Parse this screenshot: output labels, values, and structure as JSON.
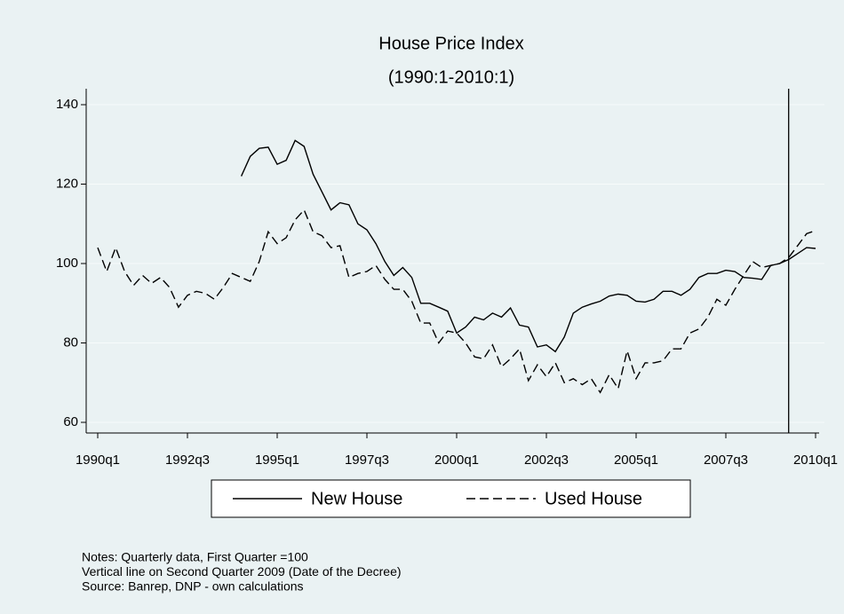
{
  "chart_data": {
    "type": "line",
    "title": "House Price Index",
    "subtitle": "(1990:1-2010:1)",
    "x": [
      1990,
      1990.25,
      1990.5,
      1990.75,
      1991,
      1991.25,
      1991.5,
      1991.75,
      1992,
      1992.25,
      1992.5,
      1992.75,
      1993,
      1993.25,
      1993.5,
      1993.75,
      1994,
      1994.25,
      1994.5,
      1994.75,
      1995,
      1995.25,
      1995.5,
      1995.75,
      1996,
      1996.25,
      1996.5,
      1996.75,
      1997,
      1997.25,
      1997.5,
      1997.75,
      1998,
      1998.25,
      1998.5,
      1998.75,
      1999,
      1999.25,
      1999.5,
      1999.75,
      2000,
      2000.25,
      2000.5,
      2000.75,
      2001,
      2001.25,
      2001.5,
      2001.75,
      2002,
      2002.25,
      2002.5,
      2002.75,
      2003,
      2003.25,
      2003.5,
      2003.75,
      2004,
      2004.25,
      2004.5,
      2004.75,
      2005,
      2005.25,
      2005.5,
      2005.75,
      2006,
      2006.25,
      2006.5,
      2006.75,
      2007,
      2007.25,
      2007.5,
      2007.75,
      2008,
      2008.25,
      2008.5,
      2008.75,
      2009,
      2009.25,
      2009.5,
      2009.75,
      2010
    ],
    "series": [
      {
        "name": "New House",
        "color": "#000000",
        "dash": false,
        "values": [
          null,
          null,
          null,
          null,
          null,
          null,
          null,
          null,
          null,
          null,
          null,
          null,
          null,
          null,
          null,
          null,
          122,
          127,
          129,
          129.3,
          125,
          126,
          131,
          129.5,
          122.5,
          118,
          113.5,
          115.3,
          114.8,
          110,
          108.5,
          105,
          100.5,
          97,
          99,
          96.5,
          90,
          90,
          89,
          88,
          82.5,
          84,
          86.5,
          85.8,
          87.5,
          86.5,
          88.8,
          84.5,
          84,
          79,
          79.5,
          77.8,
          81.5,
          87.5,
          89,
          89.8,
          90.5,
          91.8,
          92.3,
          92,
          90.5,
          90.3,
          91,
          93,
          93,
          92,
          93.5,
          96.5,
          97.5,
          97.5,
          98.3,
          98,
          96.5,
          96.3,
          96,
          99.5,
          100,
          101,
          102.5,
          104,
          103.8
        ]
      },
      {
        "name": "Used House",
        "color": "#000000",
        "dash": true,
        "values": [
          104,
          98,
          104,
          98,
          94.5,
          97,
          95,
          96.5,
          94,
          89,
          92,
          93,
          92.5,
          91,
          94,
          97.5,
          96.5,
          95.5,
          100.5,
          108,
          105,
          106.5,
          111,
          113.5,
          108,
          107,
          104,
          104.5,
          96.5,
          97.5,
          98,
          99.5,
          96,
          93.5,
          93.5,
          90.5,
          85,
          85,
          80,
          83,
          82.5,
          80,
          76.5,
          76,
          79.5,
          74,
          76,
          78.5,
          70.5,
          74.5,
          71.5,
          75,
          70,
          71,
          69.5,
          71,
          67.5,
          72,
          68.5,
          78,
          71,
          75,
          75,
          75.5,
          78.5,
          78.5,
          82.5,
          83.5,
          86.5,
          91,
          89.5,
          93.5,
          97,
          100.5,
          99,
          99.5,
          100,
          101.5,
          104.5,
          107.5,
          108.3
        ]
      }
    ],
    "xlim": [
      1990,
      2010
    ],
    "xticks": [
      {
        "value": 1990,
        "label": "1990q1"
      },
      {
        "value": 1992.5,
        "label": "1992q3"
      },
      {
        "value": 1995,
        "label": "1995q1"
      },
      {
        "value": 1997.5,
        "label": "1997q3"
      },
      {
        "value": 2000,
        "label": "2000q1"
      },
      {
        "value": 2002.5,
        "label": "2002q3"
      },
      {
        "value": 2005,
        "label": "2005q1"
      },
      {
        "value": 2007.5,
        "label": "2007q3"
      },
      {
        "value": 2010,
        "label": "2010q1"
      }
    ],
    "ylim": [
      60,
      140
    ],
    "yticks": [
      60,
      80,
      100,
      120,
      140
    ],
    "grid": true,
    "vline": 2009.25,
    "legend": "bottom",
    "notes": [
      "Notes: Quarterly data, First Quarter =100",
      "Vertical line on Second Quarter 2009 (Date of the Decree)",
      "Source: Banrep, DNP - own calculations"
    ]
  }
}
